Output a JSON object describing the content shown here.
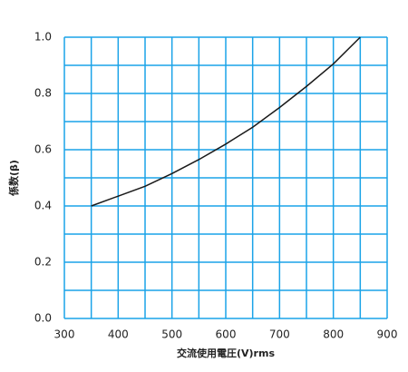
{
  "chart_data": {
    "type": "line",
    "xlabel": "交流使用電圧(V)rms",
    "ylabel": "係数(β)",
    "x": [
      350,
      400,
      450,
      500,
      550,
      600,
      650,
      700,
      750,
      800,
      850
    ],
    "series": [
      {
        "color": "#1a1a1a",
        "values": [
          0.4,
          0.435,
          0.47,
          0.515,
          0.565,
          0.62,
          0.68,
          0.75,
          0.825,
          0.905,
          1.0
        ]
      }
    ],
    "xlim": [
      300,
      900
    ],
    "xticks": [
      300,
      400,
      500,
      600,
      700,
      800,
      900
    ],
    "ylim": [
      0,
      1
    ],
    "yticks": [
      {
        "value": 0,
        "label": "0.0"
      },
      0.2,
      0.4,
      0.6,
      0.8,
      {
        "value": 1,
        "label": "1.0"
      }
    ],
    "xminorticks": [
      350,
      450,
      550,
      650,
      750,
      850
    ],
    "yminorticks": [
      0.1,
      0.3,
      0.5,
      0.7,
      0.9
    ],
    "grid": true,
    "grid_color": "#1aa3e8"
  }
}
